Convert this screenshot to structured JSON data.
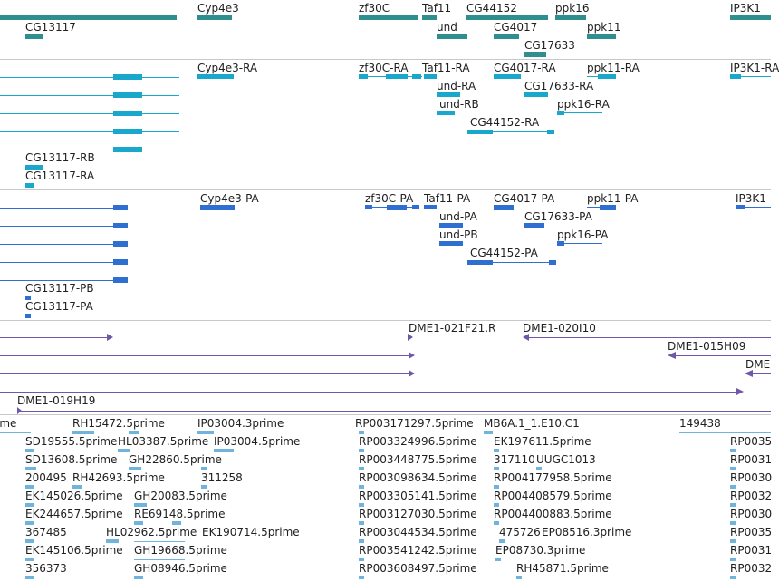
{
  "colors": {
    "gene": "#2f8f8f",
    "mrna": "#1aa7cc",
    "protein": "#2e6fd1",
    "clone": "#7058a8",
    "est": "#6fb4dc"
  },
  "gene_track": {
    "labels": [
      "Cyp4e3",
      "zf30C",
      "Taf11",
      "CG44152",
      "ppk16",
      "IP3K1",
      "CG13117",
      "und",
      "CG4017",
      "ppk11",
      "CG17633"
    ]
  },
  "mrna_track": {
    "labels": [
      "Cyp4e3-RA",
      "zf30C-RA",
      "Taf11-RA",
      "CG4017-RA",
      "ppk11-RA",
      "IP3K1-RA",
      "und-RA",
      "CG17633-RA",
      "und-RB",
      "ppk16-RA",
      "CG44152-RA",
      "CG13117-RB",
      "CG13117-RA"
    ]
  },
  "protein_track": {
    "labels": [
      "Cyp4e3-PA",
      "zf30C-PA",
      "Taf11-PA",
      "CG4017-PA",
      "ppk11-PA",
      "IP3K1-",
      "und-PA",
      "CG17633-PA",
      "und-PB",
      "ppk16-PA",
      "CG44152-PA",
      "CG13117-PB",
      "CG13117-PA"
    ]
  },
  "clone_track": {
    "labels": [
      "DME1-021F21.R",
      "DME1-020I10",
      "DME1-015H09",
      "DME",
      "DME1-019H19"
    ]
  },
  "est_track": {
    "labels": [
      "ime",
      "RH15472.5prime",
      "IP03004.3prime",
      "RP003171297.5prime",
      "MB6A.1_1.E10.C1",
      "149438",
      "SD19555.5prime",
      "HL03387.5prime",
      "IP03004.5prime",
      "RP003324996.5prime",
      "EK197611.5prime",
      "RP0035",
      "SD13608.5prime",
      "GH22860.5prime",
      "RP003448775.5prime",
      "317110",
      "UUGC1013",
      "RP0031",
      "200495",
      "RH42693.5prime",
      "311258",
      "RP003098634.5prime",
      "RP004177958.5prime",
      "RP0030",
      "EK145026.5prime",
      "GH20083.5prime",
      "RP003305141.5prime",
      "RP004408579.5prime",
      "RP0032",
      "EK244657.5prime",
      "RE69148.5prime",
      "RP003127030.5prime",
      "RP004400883.5prime",
      "RP0030",
      "367485",
      "HL02962.5prime",
      "EK190714.5prime",
      "RP003044534.5prime",
      "475726",
      "EP08516.3prime",
      "RP0035",
      "EK145106.5prime",
      "GH19668.5prime",
      "RP003541242.5prime",
      "EP08730.3prime",
      "RP0031",
      "356373",
      "GH08946.5prime",
      "RP003608497.5prime",
      "RH45871.5prime",
      "RP0032"
    ]
  }
}
